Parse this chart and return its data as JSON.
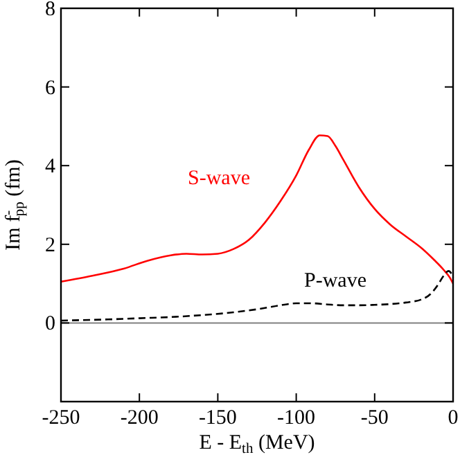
{
  "chart_data": {
    "type": "line",
    "xlabel": "E - E$_{th}$ (MeV)",
    "ylabel": "Im f$^{-}$$_{pp}$ (fm)",
    "xlim": [
      -250,
      0
    ],
    "xticks": [
      -250,
      -200,
      -150,
      -100,
      -50,
      0
    ],
    "ylim": [
      -2,
      8
    ],
    "yticks": [
      {
        "value": -2,
        "label": null
      },
      0,
      2,
      4,
      6,
      8
    ],
    "grid": false,
    "marker": "none",
    "series": [
      {
        "name": "S-wave",
        "color": "#ff0000",
        "line_style": "solid",
        "x": [
          -250,
          -230,
          -210,
          -195,
          -180,
          -170,
          -160,
          -150,
          -140,
          -130,
          -120,
          -110,
          -100,
          -92,
          -85,
          -80,
          -75,
          -70,
          -60,
          -50,
          -40,
          -30,
          -20,
          -12,
          -6,
          -2,
          0
        ],
        "values": [
          1.05,
          1.2,
          1.38,
          1.58,
          1.72,
          1.76,
          1.74,
          1.76,
          1.88,
          2.12,
          2.55,
          3.1,
          3.75,
          4.4,
          4.77,
          4.75,
          4.5,
          4.15,
          3.45,
          2.9,
          2.5,
          2.2,
          1.9,
          1.6,
          1.35,
          1.15,
          1.0
        ]
      },
      {
        "name": "P-wave",
        "color": "#000000",
        "line_style": "dashed",
        "x": [
          -250,
          -220,
          -200,
          -180,
          -160,
          -140,
          -120,
          -110,
          -100,
          -90,
          -80,
          -70,
          -60,
          -50,
          -40,
          -30,
          -20,
          -14,
          -10,
          -6,
          -3,
          -1,
          0
        ],
        "values": [
          0.06,
          0.09,
          0.12,
          0.15,
          0.2,
          0.27,
          0.38,
          0.45,
          0.5,
          0.5,
          0.47,
          0.45,
          0.45,
          0.46,
          0.48,
          0.52,
          0.6,
          0.75,
          0.95,
          1.2,
          1.32,
          1.25,
          1.15
        ]
      }
    ],
    "ref_lines": [
      {
        "axis": "y",
        "value": 0,
        "color": "#808080"
      }
    ]
  }
}
